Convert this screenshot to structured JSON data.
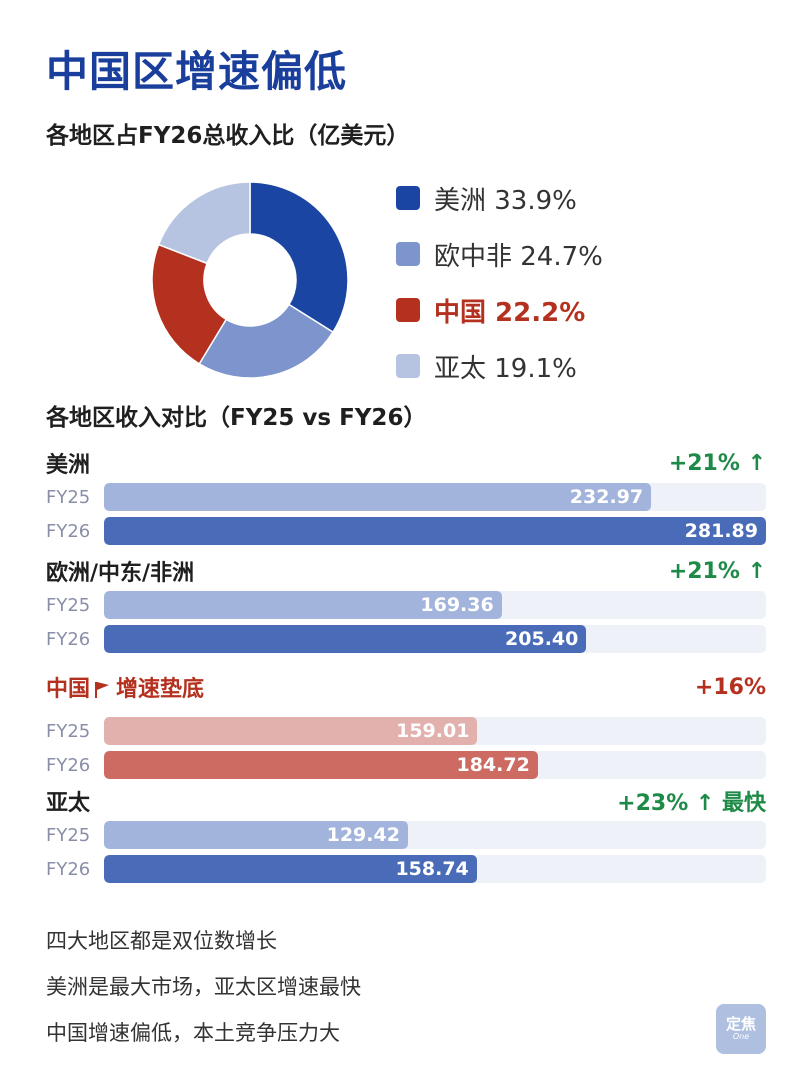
{
  "title": "中国区增速偏低",
  "donut_section_title": "各地区占FY26总收入比（亿美元）",
  "bar_section_title": "各地区收入对比（FY25 vs FY26）",
  "colors": {
    "americas": "#1b45a2",
    "emea": "#7d95cc",
    "china": "#b5311f",
    "apac": "#b6c4e2",
    "fy25_blue": "#a3b4dc",
    "fy26_blue": "#4a6cb8",
    "fy25_red": "#e2b0ad",
    "fy26_red": "#cd6a61",
    "growth_green": "#1e8a47",
    "highlight_red": "#b5311f"
  },
  "legend": [
    {
      "label": "美洲 33.9%",
      "color": "#1b45a2",
      "highlight": false
    },
    {
      "label": "欧中非 24.7%",
      "color": "#7d95cc",
      "highlight": false
    },
    {
      "label": "中国 22.2%",
      "color": "#b5311f",
      "highlight": true
    },
    {
      "label": "亚太 19.1%",
      "color": "#b6c4e2",
      "highlight": false
    }
  ],
  "regions": [
    {
      "name": "美洲",
      "growth": "+21% ↑",
      "fy25_label": "FY25",
      "fy26_label": "FY26",
      "fy25": "232.97",
      "fy26": "281.89",
      "theme": "blue"
    },
    {
      "name": "欧洲/中东/非洲",
      "growth": "+21% ↑",
      "fy25_label": "FY25",
      "fy26_label": "FY26",
      "fy25": "169.36",
      "fy26": "205.40",
      "theme": "blue"
    },
    {
      "name": "中国",
      "tag": "增速垫底",
      "growth": "+16%",
      "fy25_label": "FY25",
      "fy26_label": "FY26",
      "fy25": "159.01",
      "fy26": "184.72",
      "theme": "red"
    },
    {
      "name": "亚太",
      "growth": "+23% ↑ 最快",
      "fy25_label": "FY25",
      "fy26_label": "FY26",
      "fy25": "129.42",
      "fy26": "158.74",
      "theme": "blue"
    }
  ],
  "notes": [
    "四大地区都是双位数增长",
    "美洲是最大市场，亚太区增速最快",
    "中国增速偏低，本土竞争压力大"
  ],
  "badge": {
    "main": "定焦",
    "sub": "One"
  },
  "chart_data": [
    {
      "type": "pie",
      "title": "各地区占FY26总收入比（亿美元）",
      "categories": [
        "美洲",
        "欧中非",
        "中国",
        "亚太"
      ],
      "values": [
        33.9,
        24.7,
        22.2,
        19.1
      ],
      "unit": "%",
      "legend": "right"
    },
    {
      "type": "bar",
      "title": "各地区收入对比（FY25 vs FY26）",
      "categories": [
        "美洲",
        "欧洲/中东/非洲",
        "中国",
        "亚太"
      ],
      "series": [
        {
          "name": "FY25",
          "values": [
            232.97,
            169.36,
            159.01,
            129.42
          ]
        },
        {
          "name": "FY26",
          "values": [
            281.89,
            205.4,
            184.72,
            158.74
          ]
        }
      ],
      "growth": [
        "+21%",
        "+21%",
        "+16%",
        "+23%"
      ]
    }
  ]
}
